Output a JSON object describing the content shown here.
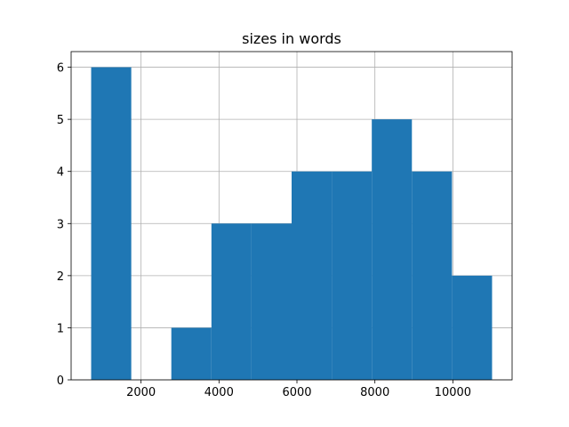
{
  "chart_data": {
    "type": "histogram",
    "title": "sizes in words",
    "bins": [
      720,
      1749,
      2777,
      3806,
      4834,
      5863,
      6892,
      7920,
      8949,
      9977,
      11006
    ],
    "values": [
      6,
      0,
      1,
      3,
      3,
      4,
      4,
      5,
      4,
      2
    ],
    "color": "#1f77b4",
    "xlim": [
      206,
      11520
    ],
    "xticks": [
      2000,
      4000,
      6000,
      8000,
      10000
    ],
    "ylim": [
      0,
      6.3
    ],
    "yticks": [
      0,
      1,
      2,
      3,
      4,
      5,
      6
    ],
    "grid": true
  }
}
